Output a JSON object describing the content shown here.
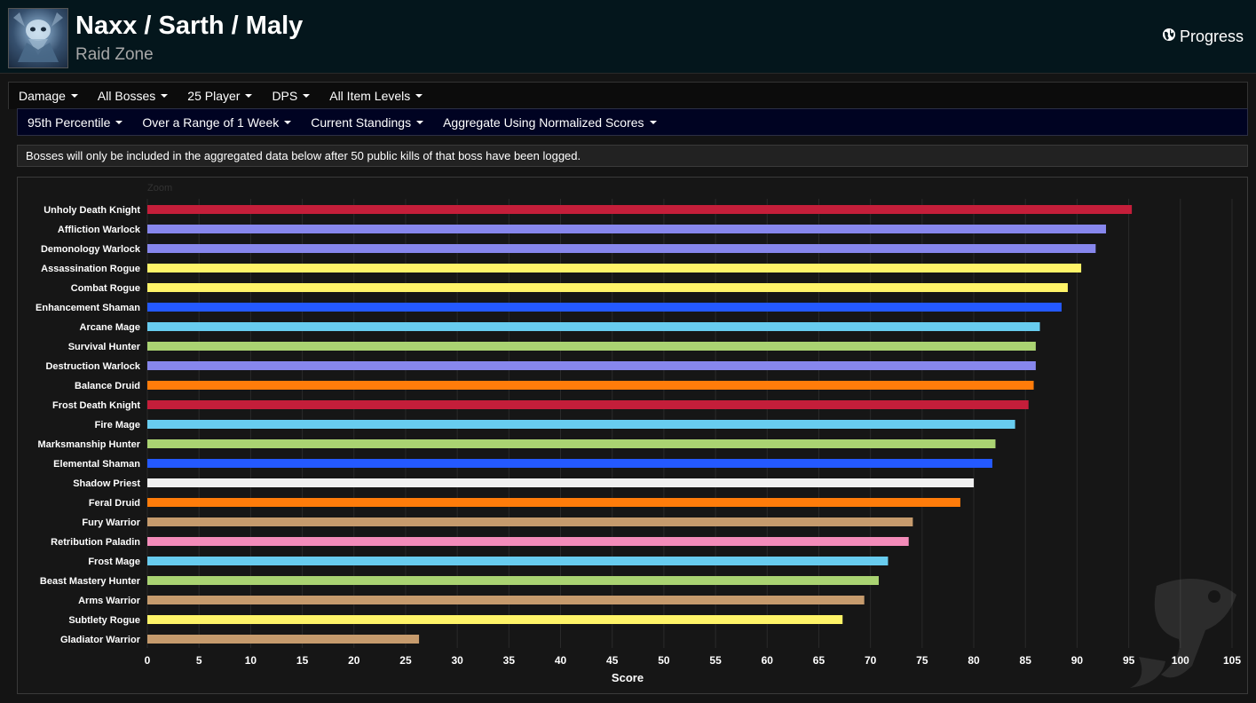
{
  "header": {
    "title": "Naxx / Sarth / Maly",
    "subtitle": "Raid Zone",
    "progress_label": "Progress"
  },
  "filters_row1": [
    "Damage",
    "All Bosses",
    "25 Player",
    "DPS",
    "All Item Levels"
  ],
  "filters_row2": [
    "95th Percentile",
    "Over a Range of 1 Week",
    "Current Standings",
    "Aggregate Using Normalized Scores"
  ],
  "notice": "Bosses will only be included in the aggregated data below after 50 public kills of that boss have been logged.",
  "chart": {
    "zoom_label": "Zoom"
  },
  "chart_data": {
    "type": "bar",
    "orientation": "horizontal",
    "title": "",
    "xlabel": "Score",
    "ylabel": "",
    "xlim": [
      0,
      105
    ],
    "xticks": [
      0,
      5,
      10,
      15,
      20,
      25,
      30,
      35,
      40,
      45,
      50,
      55,
      60,
      65,
      70,
      75,
      80,
      85,
      90,
      95,
      100,
      105
    ],
    "grid": true,
    "categories": [
      "Unholy Death Knight",
      "Affliction Warlock",
      "Demonology Warlock",
      "Assassination Rogue",
      "Combat Rogue",
      "Enhancement Shaman",
      "Arcane Mage",
      "Survival Hunter",
      "Destruction Warlock",
      "Balance Druid",
      "Frost Death Knight",
      "Fire Mage",
      "Marksmanship Hunter",
      "Elemental Shaman",
      "Shadow Priest",
      "Feral Druid",
      "Fury Warrior",
      "Retribution Paladin",
      "Frost Mage",
      "Beast Mastery Hunter",
      "Arms Warrior",
      "Subtlety Rogue",
      "Gladiator Warrior"
    ],
    "values": [
      95.3,
      92.8,
      91.8,
      90.4,
      89.1,
      88.5,
      86.4,
      86.0,
      86.0,
      85.8,
      85.3,
      84.0,
      82.1,
      81.8,
      80.0,
      78.7,
      74.1,
      73.7,
      71.7,
      70.8,
      69.4,
      67.3,
      26.3
    ],
    "colors": [
      "#C41E3A",
      "#8787ED",
      "#8787ED",
      "#FFF468",
      "#FFF468",
      "#2459FF",
      "#68CCEF",
      "#AAD372",
      "#8787ED",
      "#FF7C0A",
      "#C41E3A",
      "#68CCEF",
      "#AAD372",
      "#2459FF",
      "#F0F0F0",
      "#FF7C0A",
      "#C69B6D",
      "#F48CBA",
      "#68CCEF",
      "#AAD372",
      "#C69B6D",
      "#FFF468",
      "#C69B6D"
    ]
  }
}
